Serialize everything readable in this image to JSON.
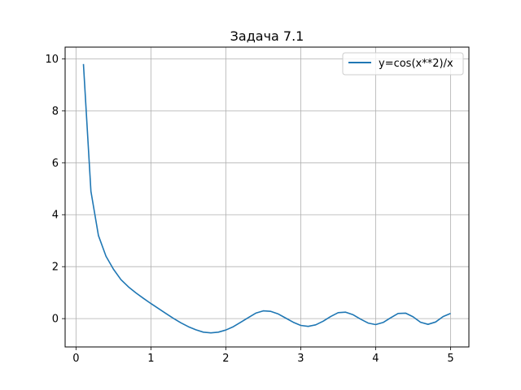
{
  "chart_data": {
    "type": "line",
    "title": "Задача 7.1",
    "xlabel": "",
    "ylabel": "",
    "xlim": [
      -0.145,
      5.245
    ],
    "ylim": [
      -1.09,
      10.45
    ],
    "xticks": [
      0,
      1,
      2,
      3,
      4,
      5
    ],
    "xtick_labels": [
      "0",
      "1",
      "2",
      "3",
      "4",
      "5"
    ],
    "yticks": [
      0,
      2,
      4,
      6,
      8,
      10
    ],
    "ytick_labels": [
      "0",
      "2",
      "4",
      "6",
      "8",
      "10"
    ],
    "grid": true,
    "legend_position": "upper right",
    "series": [
      {
        "name": "y=cos(x**2)/x",
        "color": "#1f77b4",
        "x": [
          0.1,
          0.2,
          0.3,
          0.4,
          0.5,
          0.6,
          0.7,
          0.8,
          0.9,
          1.0,
          1.1,
          1.2,
          1.3,
          1.4,
          1.5,
          1.6,
          1.7,
          1.8,
          1.9,
          2.0,
          2.1,
          2.2,
          2.3,
          2.4,
          2.5,
          2.6,
          2.7,
          2.8,
          2.9,
          3.0,
          3.1,
          3.2,
          3.3,
          3.4,
          3.5,
          3.6,
          3.7,
          3.8,
          3.9,
          4.0,
          4.1,
          4.2,
          4.3,
          4.4,
          4.5,
          4.6,
          4.7,
          4.8,
          4.9,
          5.0
        ],
        "y": [
          9.8,
          4.9,
          3.2,
          2.4,
          1.9,
          1.5,
          1.22,
          0.99,
          0.78,
          0.58,
          0.39,
          0.2,
          0.01,
          -0.16,
          -0.31,
          -0.43,
          -0.52,
          -0.55,
          -0.52,
          -0.44,
          -0.31,
          -0.14,
          0.04,
          0.21,
          0.3,
          0.28,
          0.18,
          0.02,
          -0.14,
          -0.26,
          -0.3,
          -0.24,
          -0.1,
          0.08,
          0.23,
          0.25,
          0.15,
          -0.02,
          -0.17,
          -0.23,
          -0.15,
          0.03,
          0.2,
          0.21,
          0.07,
          -0.14,
          -0.22,
          -0.13,
          0.08,
          0.2
        ]
      }
    ]
  }
}
